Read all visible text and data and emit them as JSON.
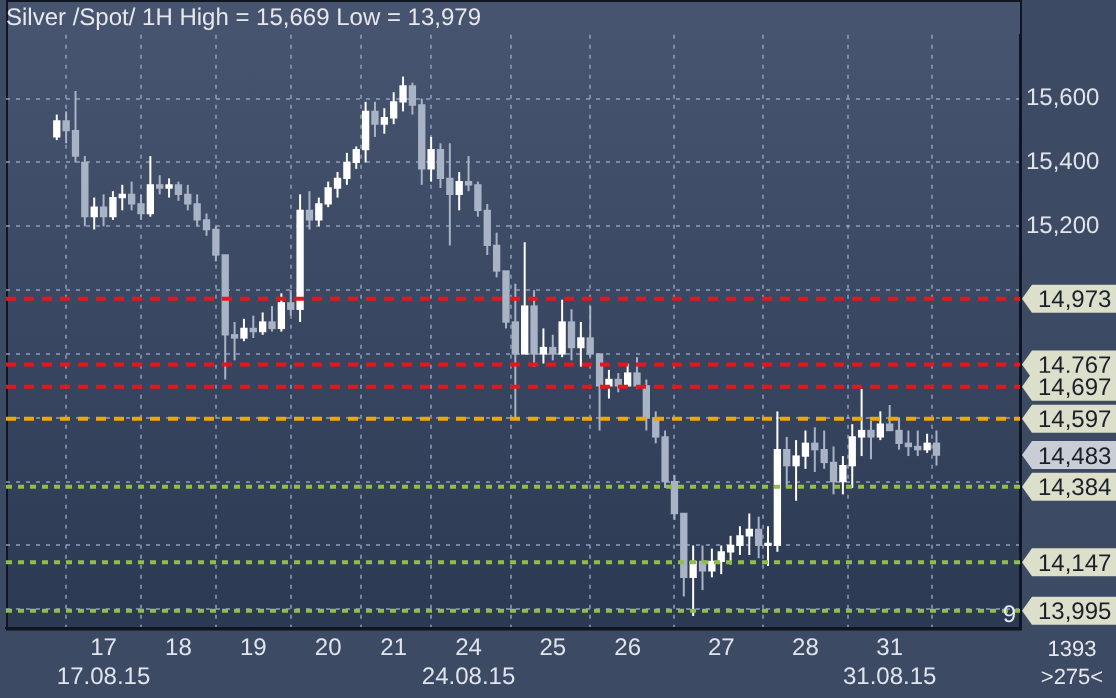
{
  "chart_data": {
    "type": "candlestick",
    "title": "Silver /Spot/ 1H High = 15,669 Low = 13,979",
    "colors": [
      "#ffffff",
      "#a9b3c6",
      "#a9b3c6",
      "#a9b3c6",
      "#ffffff",
      "#a9b3c6",
      "#ffffff",
      "#ffffff",
      "#a9b3c6",
      "#a9b3c6",
      "#ffffff",
      "#a9b3c6",
      "#ffffff",
      "#a9b3c6",
      "#a9b3c6",
      "#a9b3c6",
      "#a9b3c6",
      "#a9b3c6",
      "#a9b3c6",
      "#a9b3c6",
      "#ffffff",
      "#a9b3c6",
      "#ffffff",
      "#a9b3c6",
      "#ffffff",
      "#a9b3c6",
      "#ffffff",
      "#a9b3c6",
      "#ffffff",
      "#ffffff",
      "#ffffff",
      "#ffffff",
      "#ffffff",
      "#ffffff",
      "#a9b3c6",
      "#ffffff",
      "#ffffff",
      "#ffffff",
      "#a9b3c6",
      "#a9b3c6",
      "#ffffff",
      "#a9b3c6",
      "#a9b3c6",
      "#ffffff",
      "#a9b3c6",
      "#a9b3c6",
      "#a9b3c6",
      "#a9b3c6",
      "#a9b3c6",
      "#a9b3c6",
      "#ffffff",
      "#a9b3c6",
      "#ffffff",
      "#a9b3c6",
      "#ffffff",
      "#a9b3c6",
      "#ffffff",
      "#a9b3c6",
      "#a9b3c6",
      "#ffffff",
      "#a9b3c6",
      "#ffffff",
      "#a9b3c6",
      "#a9b3c6",
      "#a9b3c6",
      "#a9b3c6",
      "#a9b3c6",
      "#a9b3c6",
      "#ffffff",
      "#a9b3c6",
      "#ffffff",
      "#ffffff",
      "#ffffff",
      "#ffffff",
      "#ffffff",
      "#a9b3c6",
      "#ffffff",
      "#ffffff",
      "#a9b3c6",
      "#ffffff",
      "#ffffff",
      "#a9b3c6",
      "#a9b3c6",
      "#a9b3c6",
      "#ffffff",
      "#ffffff",
      "#ffffff",
      "#a9b3c6",
      "#ffffff",
      "#a9b3c6",
      "#a9b3c6",
      "#a9b3c6",
      "#a9b3c6",
      "#ffffff",
      "#a9b3c6"
    ],
    "categories": [
      null,
      null,
      null,
      null,
      null,
      "17\n17.08.15",
      null,
      null,
      null,
      null,
      null,
      null,
      null,
      "18",
      null,
      null,
      null,
      null,
      null,
      null,
      null,
      "19",
      null,
      null,
      null,
      null,
      null,
      null,
      null,
      "20",
      null,
      null,
      null,
      null,
      null,
      null,
      "21",
      null,
      null,
      null,
      null,
      null,
      null,
      null,
      "24\n24.08.15",
      null,
      null,
      null,
      null,
      null,
      null,
      null,
      null,
      "25",
      null,
      null,
      null,
      null,
      null,
      null,
      null,
      "26",
      null,
      null,
      null,
      null,
      null,
      null,
      null,
      null,
      null,
      "27",
      null,
      null,
      null,
      null,
      null,
      null,
      null,
      null,
      "28",
      null,
      null,
      null,
      null,
      null,
      null,
      null,
      null,
      "31\n31.08.15",
      null,
      null,
      null,
      null,
      null
    ],
    "ohlc": [
      [
        15480,
        15550,
        15470,
        15530
      ],
      [
        15530,
        15560,
        15460,
        15500
      ],
      [
        15500,
        15624,
        15400,
        15420
      ],
      [
        15400,
        15420,
        15200,
        15230
      ],
      [
        15230,
        15290,
        15190,
        15260
      ],
      [
        15260,
        15300,
        15200,
        15230
      ],
      [
        15230,
        15310,
        15220,
        15290
      ],
      [
        15290,
        15330,
        15250,
        15300
      ],
      [
        15300,
        15340,
        15250,
        15270
      ],
      [
        15270,
        15300,
        15220,
        15240
      ],
      [
        15240,
        15420,
        15230,
        15330
      ],
      [
        15330,
        15360,
        15300,
        15320
      ],
      [
        15320,
        15350,
        15290,
        15330
      ],
      [
        15330,
        15340,
        15280,
        15300
      ],
      [
        15300,
        15330,
        15250,
        15270
      ],
      [
        15270,
        15300,
        15200,
        15220
      ],
      [
        15220,
        15240,
        15170,
        15190
      ],
      [
        15190,
        15200,
        15090,
        15110
      ],
      [
        15110,
        15110,
        14720,
        14860
      ],
      [
        14860,
        14900,
        14780,
        14850
      ],
      [
        14850,
        14910,
        14840,
        14880
      ],
      [
        14880,
        14920,
        14850,
        14870
      ],
      [
        14870,
        14930,
        14860,
        14900
      ],
      [
        14900,
        14950,
        14870,
        14880
      ],
      [
        14880,
        14990,
        14870,
        14960
      ],
      [
        14960,
        15000,
        14920,
        14940
      ],
      [
        14940,
        15300,
        14900,
        15250
      ],
      [
        15250,
        15310,
        15190,
        15220
      ],
      [
        15220,
        15290,
        15200,
        15270
      ],
      [
        15270,
        15340,
        15260,
        15320
      ],
      [
        15320,
        15370,
        15290,
        15350
      ],
      [
        15350,
        15430,
        15330,
        15400
      ],
      [
        15400,
        15450,
        15380,
        15440
      ],
      [
        15440,
        15590,
        15400,
        15560
      ],
      [
        15560,
        15590,
        15480,
        15520
      ],
      [
        15520,
        15570,
        15490,
        15540
      ],
      [
        15540,
        15620,
        15520,
        15590
      ],
      [
        15590,
        15669,
        15560,
        15640
      ],
      [
        15640,
        15650,
        15550,
        15580
      ],
      [
        15580,
        15600,
        15330,
        15380
      ],
      [
        15380,
        15480,
        15340,
        15440
      ],
      [
        15440,
        15460,
        15320,
        15350
      ],
      [
        15350,
        15460,
        15140,
        15300
      ],
      [
        15300,
        15370,
        15250,
        15340
      ],
      [
        15340,
        15420,
        15310,
        15330
      ],
      [
        15330,
        15340,
        15230,
        15250
      ],
      [
        15250,
        15270,
        15110,
        15140
      ],
      [
        15140,
        15180,
        15040,
        15060
      ],
      [
        15060,
        15060,
        14880,
        14900
      ],
      [
        14900,
        15020,
        14600,
        14800
      ],
      [
        14800,
        15150,
        14800,
        14950
      ],
      [
        14950,
        15000,
        14760,
        14800
      ],
      [
        14800,
        14880,
        14770,
        14820
      ],
      [
        14820,
        14860,
        14780,
        14800
      ],
      [
        14800,
        14970,
        14790,
        14900
      ],
      [
        14900,
        14940,
        14780,
        14820
      ],
      [
        14820,
        14900,
        14760,
        14850
      ],
      [
        14850,
        14950,
        14790,
        14800
      ],
      [
        14800,
        14800,
        14560,
        14700
      ],
      [
        14700,
        14750,
        14660,
        14720
      ],
      [
        14720,
        14740,
        14680,
        14700
      ],
      [
        14700,
        14770,
        14700,
        14740
      ],
      [
        14740,
        14790,
        14690,
        14700
      ],
      [
        14700,
        14720,
        14560,
        14600
      ],
      [
        14600,
        14620,
        14520,
        14540
      ],
      [
        14540,
        14560,
        14380,
        14400
      ],
      [
        14400,
        14420,
        14280,
        14300
      ],
      [
        14300,
        14300,
        14040,
        14100
      ],
      [
        14100,
        14200,
        13979,
        14150
      ],
      [
        14150,
        14200,
        14060,
        14120
      ],
      [
        14120,
        14190,
        14100,
        14150
      ],
      [
        14150,
        14200,
        14110,
        14180
      ],
      [
        14180,
        14230,
        14140,
        14200
      ],
      [
        14200,
        14260,
        14170,
        14230
      ],
      [
        14230,
        14300,
        14170,
        14250
      ],
      [
        14250,
        14290,
        14160,
        14200
      ],
      [
        14200,
        14260,
        14136,
        14200
      ],
      [
        14200,
        14620,
        14180,
        14500
      ],
      [
        14500,
        14540,
        14380,
        14450
      ],
      [
        14450,
        14530,
        14340,
        14480
      ],
      [
        14480,
        14560,
        14440,
        14520
      ],
      [
        14520,
        14570,
        14430,
        14500
      ],
      [
        14500,
        14560,
        14440,
        14460
      ],
      [
        14460,
        14510,
        14360,
        14400
      ],
      [
        14400,
        14480,
        14360,
        14450
      ],
      [
        14450,
        14580,
        14380,
        14540
      ],
      [
        14540,
        14690,
        14480,
        14560
      ],
      [
        14560,
        14590,
        14470,
        14540
      ],
      [
        14540,
        14620,
        14530,
        14580
      ],
      [
        14580,
        14640,
        14560,
        14560
      ],
      [
        14560,
        14600,
        14500,
        14520
      ],
      [
        14520,
        14560,
        14480,
        14510
      ],
      [
        14510,
        14560,
        14480,
        14500
      ],
      [
        14500,
        14550,
        14490,
        14520
      ],
      [
        14520,
        14560,
        14450,
        14483
      ]
    ],
    "ylim": [
      13940,
      15800
    ],
    "yticks": [
      {
        "value": 14000,
        "label": null
      },
      {
        "value": 14200,
        "label": null
      },
      {
        "value": 14400,
        "label": null
      },
      {
        "value": 14600,
        "label": null
      },
      {
        "value": 14800,
        "label": null
      },
      {
        "value": 15000,
        "label": null
      },
      {
        "value": 15200,
        "label": "15,200"
      },
      {
        "value": 15400,
        "label": "15,400"
      },
      {
        "value": 15600,
        "label": "15,600"
      }
    ],
    "ref_lines": [
      {
        "axis": "y",
        "value": 14973,
        "label": "14,973",
        "color": "#e8161a",
        "line_style": "dashed"
      },
      {
        "axis": "y",
        "value": 14767,
        "label": "14,767",
        "color": "#e8161a",
        "line_style": "dashed"
      },
      {
        "axis": "y",
        "value": 14697,
        "label": "14,697",
        "color": "#e8161a",
        "line_style": "dashed"
      },
      {
        "axis": "y",
        "value": 14597,
        "label": "14,597",
        "color": "#f0a800",
        "line_style": "dashed"
      },
      {
        "axis": "y",
        "value": 14384,
        "label": "14,384",
        "color": "#8fbf4a",
        "line_style": "dotted"
      },
      {
        "axis": "y",
        "value": 14147,
        "label": "14,147",
        "color": "#8fbf4a",
        "line_style": "dotted"
      },
      {
        "axis": "y",
        "value": 13995,
        "label": "13,995",
        "color": "#8fbf4a",
        "line_style": "dotted"
      }
    ],
    "annotations": [
      "14,483",
      "9",
      "1393",
      ">275<"
    ],
    "grid": true,
    "legend": false
  }
}
